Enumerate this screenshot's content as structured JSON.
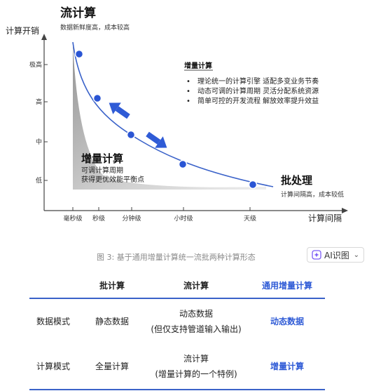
{
  "diagram": {
    "axis_y_label": "计算开销",
    "axis_x_label": "计算间隔",
    "y_ticks": [
      "极高",
      "高",
      "中",
      "低"
    ],
    "x_ticks": [
      "毫秒级",
      "秒级",
      "分钟级",
      "小时级",
      "天级"
    ],
    "stream_title": "流计算",
    "stream_desc": "数据新鲜度高，成本较高",
    "batch_title": "批处理",
    "batch_desc": "计算间隔高，成本较低",
    "incremental_title": "增量计算",
    "incremental_line1": "可调计算周期",
    "incremental_line2": "获得更优效能平衡点",
    "legend_title": "增量计算",
    "legend_items": [
      "理论统一的计算引擎 适配多变业务节奏",
      "动态可调的计算周期 灵活分配系统资源",
      "简单可控的开发流程 解放效率提升效益"
    ],
    "colors": {
      "accent": "#2f5bd6",
      "curve": "#3a62c9",
      "dot": "#2a55d4"
    }
  },
  "caption": "图 3: 基于通用增量计算统一流批两种计算形态",
  "ai_button": {
    "label": "AI识图",
    "icon": "ai-sparkle-icon"
  },
  "table": {
    "headers": [
      "",
      "批计算",
      "流计算",
      "通用增量计算"
    ],
    "rows": [
      {
        "label": "数据模式",
        "batch": "静态数据",
        "stream_line1": "动态数据",
        "stream_line2": "(但仅支持管道输入输出)",
        "incremental": "动态数据"
      },
      {
        "label": "计算模式",
        "batch": "全量计算",
        "stream_line1": "流计算",
        "stream_line2": "(增量计算的一个特例)",
        "incremental": "增量计算"
      }
    ]
  }
}
